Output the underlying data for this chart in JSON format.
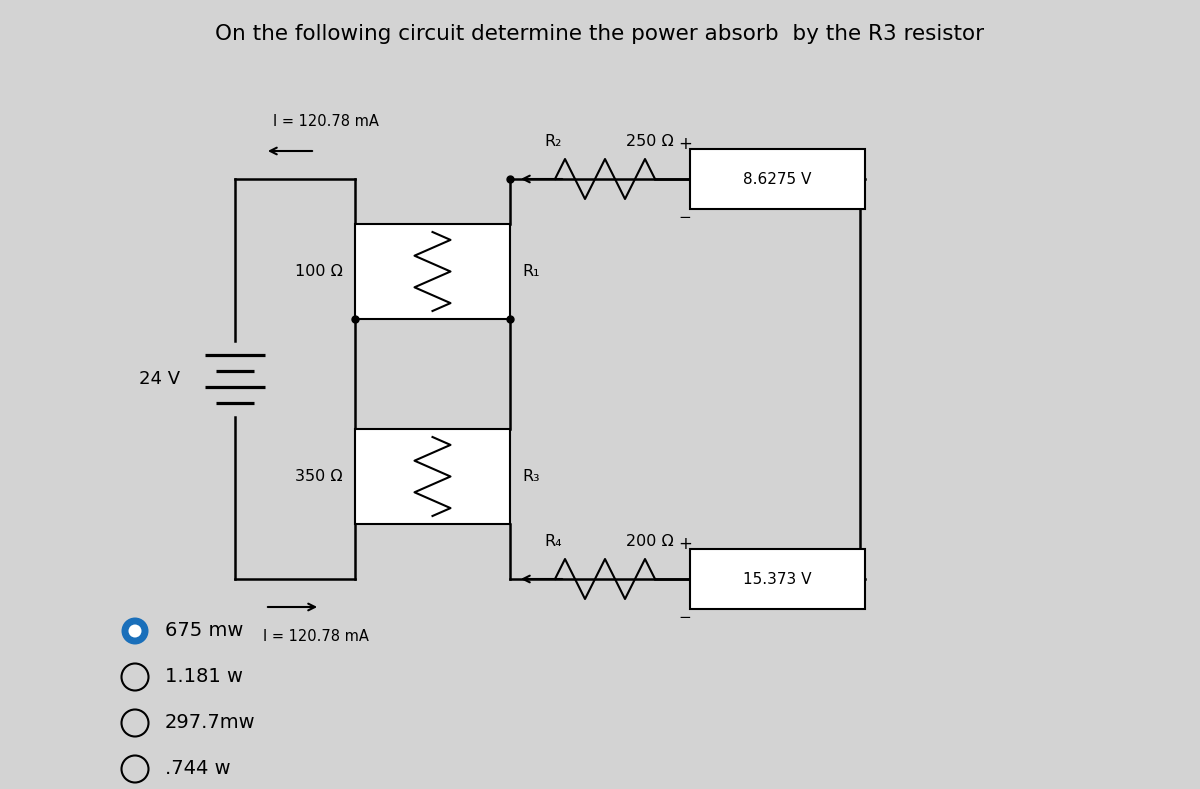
{
  "title": "On the following circuit determine the power absorb  by the R3 resistor",
  "bg_color": "#d3d3d3",
  "text_color": "#000000",
  "title_fontsize": 15.5,
  "answer_options": [
    "675 mw",
    "1.181 w",
    "297.7mw",
    ".744 w"
  ],
  "selected_answer": 0,
  "circuit": {
    "voltage_source": "24 V",
    "current_label_top": "I = 120.78 mA",
    "current_label_bottom": "I = 120.78 mA",
    "r1_ohm": "100 Ω",
    "r1_name": "R₁",
    "r2_name": "R₂",
    "r2_ohm": "250 Ω",
    "r2_voltage": "8.6275 V",
    "r3_ohm": "350 Ω",
    "r3_name": "R₃",
    "r4_name": "R₄",
    "r4_ohm": "200 Ω",
    "r4_voltage": "15.373 V"
  }
}
